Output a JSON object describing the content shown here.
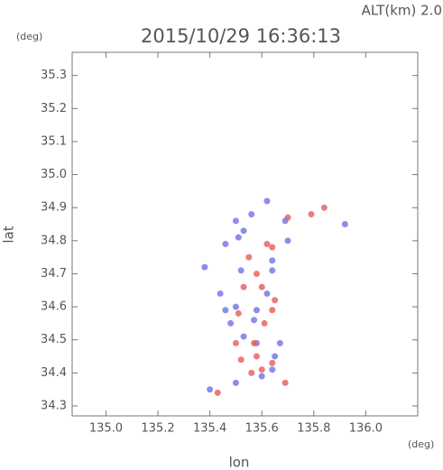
{
  "chart_data": {
    "type": "scatter",
    "title": "2015/10/29 16:36:13",
    "subtitle": "ALT(km)  2.0",
    "x_label": "lon",
    "y_label": "lat",
    "x_unit": "(deg)",
    "y_unit": "(deg)",
    "xlim": [
      134.87,
      136.2
    ],
    "ylim": [
      34.27,
      35.37
    ],
    "xticks": [
      {
        "value": 135,
        "label": "135.0"
      },
      135.2,
      135.4,
      135.6,
      135.8,
      {
        "value": 136,
        "label": "136.0"
      }
    ],
    "yticks": [
      34.3,
      34.4,
      34.5,
      34.6,
      34.7,
      34.8,
      34.9,
      {
        "value": 35,
        "label": "35.0"
      },
      35.1,
      35.2,
      35.3
    ],
    "series": [
      {
        "color": "#7070e8",
        "x": [
          135.5,
          135.51,
          135.53,
          135.62,
          135.56,
          135.64,
          135.69,
          135.7,
          135.52,
          135.44,
          135.5,
          135.57,
          135.62,
          135.53,
          135.58,
          135.65,
          135.6,
          135.5,
          135.4,
          135.64,
          135.48,
          135.46,
          135.92,
          135.38,
          135.58,
          135.67,
          135.64,
          135.46
        ],
        "values": [
          34.86,
          34.81,
          34.83,
          34.92,
          34.88,
          34.74,
          34.86,
          34.8,
          34.71,
          34.64,
          34.6,
          34.56,
          34.64,
          34.51,
          34.49,
          34.45,
          34.39,
          34.37,
          34.35,
          34.41,
          34.55,
          34.59,
          34.85,
          34.72,
          34.59,
          34.49,
          34.71,
          34.79
        ]
      },
      {
        "color": "#e85a5a",
        "x": [
          135.62,
          135.64,
          135.7,
          135.79,
          135.84,
          135.57,
          135.64,
          135.6,
          135.5,
          135.52,
          135.58,
          135.56,
          135.53,
          135.6,
          135.65,
          135.55,
          135.64,
          135.61,
          135.51,
          135.58,
          135.43,
          135.69
        ],
        "values": [
          34.79,
          34.78,
          34.87,
          34.88,
          34.9,
          34.49,
          34.43,
          34.41,
          34.49,
          34.44,
          34.45,
          34.4,
          34.66,
          34.66,
          34.62,
          34.75,
          34.59,
          34.55,
          34.58,
          34.7,
          34.34,
          34.37
        ]
      }
    ]
  }
}
